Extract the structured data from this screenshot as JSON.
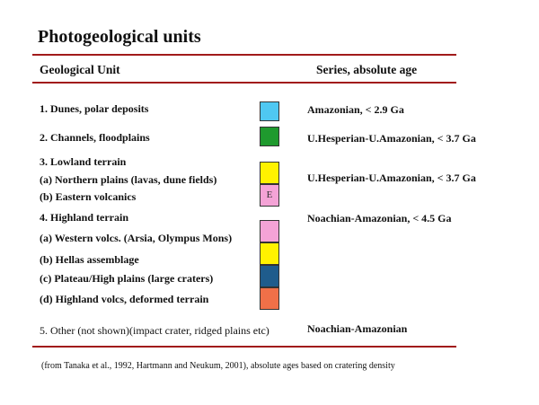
{
  "title": "Photogeological units",
  "headers": {
    "unit": "Geological Unit",
    "age": "Series, absolute age"
  },
  "units": [
    {
      "label": "1. Dunes, polar deposits",
      "color": "#4fc8f2",
      "swatch_text": ""
    },
    {
      "label": "2. Channels, floodplains",
      "color": "#1f9a2e",
      "swatch_text": ""
    },
    {
      "label": "3. Lowland terrain",
      "color": "",
      "swatch_text": ""
    },
    {
      "label": "(a) Northern plains (lavas, dune fields)",
      "color": "#fff200",
      "swatch_text": ""
    },
    {
      "label": "(b) Eastern volcanics",
      "color": "#f4a3d6",
      "swatch_text": "E"
    },
    {
      "label": "4. Highland terrain",
      "color": "",
      "swatch_text": ""
    },
    {
      "label": "(a) Western volcs. (Arsia, Olympus Mons)",
      "color": "#f4a3d6",
      "swatch_text": ""
    },
    {
      "label": "(b) Hellas assemblage",
      "color": "#fff200",
      "swatch_text": ""
    },
    {
      "label": "(c) Plateau/High plains (large craters)",
      "color": "#1f5c8c",
      "swatch_text": ""
    },
    {
      "label": "(d) Highland volcs, deformed terrain",
      "color": "#f07048",
      "swatch_text": ""
    },
    {
      "label": "5. Other (not shown)(impact crater, ridged plains etc)",
      "color": "",
      "swatch_text": ""
    }
  ],
  "ages": [
    "Amazonian, < 2.9 Ga",
    "U.Hesperian-U.Amazonian, < 3.7 Ga",
    "U.Hesperian-U.Amazonian, < 3.7 Ga",
    "Noachian-Amazonian, < 4.5 Ga",
    "Noachian-Amazonian"
  ],
  "rule_color": "#a11a1a",
  "footnote": "(from Tanaka et al., 1992, Hartmann and Neukum, 2001), absolute ages based on cratering density"
}
